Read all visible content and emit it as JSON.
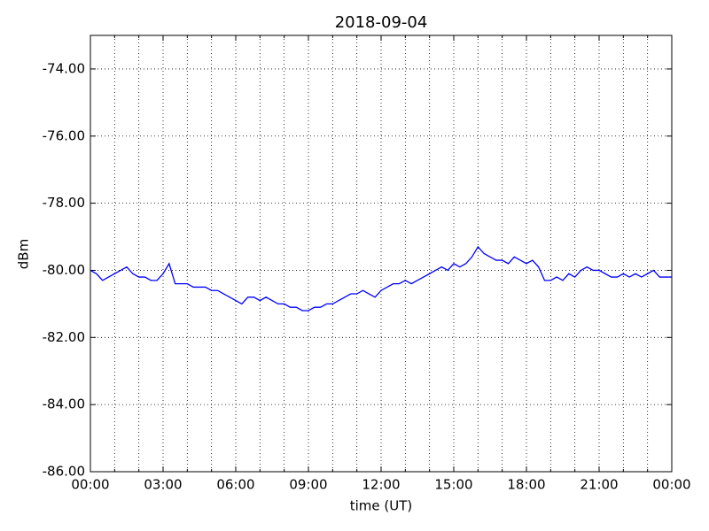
{
  "chart_data": {
    "type": "line",
    "title": "2018-09-04",
    "xlabel": "time (UT)",
    "ylabel": "dBm",
    "x": [
      0,
      0.25,
      0.5,
      0.75,
      1,
      1.25,
      1.5,
      1.75,
      2,
      2.25,
      2.5,
      2.75,
      3,
      3.25,
      3.5,
      3.75,
      4,
      4.25,
      4.5,
      4.75,
      5,
      5.25,
      5.5,
      5.75,
      6,
      6.25,
      6.5,
      6.75,
      7,
      7.25,
      7.5,
      7.75,
      8,
      8.25,
      8.5,
      8.75,
      9,
      9.25,
      9.5,
      9.75,
      10,
      10.25,
      10.5,
      10.75,
      11,
      11.25,
      11.5,
      11.75,
      12,
      12.25,
      12.5,
      12.75,
      13,
      13.25,
      13.5,
      13.75,
      14,
      14.25,
      14.5,
      14.75,
      15,
      15.25,
      15.5,
      15.75,
      16,
      16.25,
      16.5,
      16.75,
      17,
      17.25,
      17.5,
      17.75,
      18,
      18.25,
      18.5,
      18.75,
      19,
      19.25,
      19.5,
      19.75,
      20,
      20.25,
      20.5,
      20.75,
      21,
      21.25,
      21.5,
      21.75,
      22,
      22.25,
      22.5,
      22.75,
      23,
      23.25,
      23.5,
      23.75,
      24
    ],
    "series": [
      {
        "color": "#0000ff",
        "values": [
          -80.0,
          -80.1,
          -80.3,
          -80.2,
          -80.1,
          -80.0,
          -79.9,
          -80.1,
          -80.2,
          -80.2,
          -80.3,
          -80.3,
          -80.1,
          -79.8,
          -80.4,
          -80.4,
          -80.4,
          -80.5,
          -80.5,
          -80.5,
          -80.6,
          -80.6,
          -80.7,
          -80.8,
          -80.9,
          -81.0,
          -80.8,
          -80.8,
          -80.9,
          -80.8,
          -80.9,
          -81.0,
          -81.0,
          -81.1,
          -81.1,
          -81.2,
          -81.2,
          -81.1,
          -81.1,
          -81.0,
          -81.0,
          -80.9,
          -80.8,
          -80.7,
          -80.7,
          -80.6,
          -80.7,
          -80.8,
          -80.6,
          -80.5,
          -80.4,
          -80.4,
          -80.3,
          -80.4,
          -80.3,
          -80.2,
          -80.1,
          -80.0,
          -79.9,
          -80.0,
          -79.8,
          -79.9,
          -79.8,
          -79.6,
          -79.3,
          -79.5,
          -79.6,
          -79.7,
          -79.7,
          -79.8,
          -79.6,
          -79.7,
          -79.8,
          -79.7,
          -79.9,
          -80.3,
          -80.3,
          -80.2,
          -80.3,
          -80.1,
          -80.2,
          -80.0,
          -79.9,
          -80.0,
          -80.0,
          -80.1,
          -80.2,
          -80.2,
          -80.1,
          -80.2,
          -80.1,
          -80.2,
          -80.1,
          -80.0,
          -80.2,
          -80.2,
          -80.2
        ]
      }
    ],
    "xlim": [
      0,
      24
    ],
    "xticks": [
      {
        "value": 0,
        "label": "00:00"
      },
      {
        "value": 3,
        "label": "03:00"
      },
      {
        "value": 6,
        "label": "06:00"
      },
      {
        "value": 9,
        "label": "09:00"
      },
      {
        "value": 12,
        "label": "12:00"
      },
      {
        "value": 15,
        "label": "15:00"
      },
      {
        "value": 18,
        "label": "18:00"
      },
      {
        "value": 21,
        "label": "21:00"
      },
      {
        "value": 24,
        "label": "00:00"
      }
    ],
    "x_minor_ticks": [
      1,
      2,
      4,
      5,
      7,
      8,
      10,
      11,
      13,
      14,
      16,
      17,
      19,
      20,
      22,
      23
    ],
    "ylim": [
      -86,
      -73
    ],
    "yticks": [
      {
        "value": -86,
        "label": "-86.00"
      },
      {
        "value": -84,
        "label": "-84.00"
      },
      {
        "value": -82,
        "label": "-82.00"
      },
      {
        "value": -80,
        "label": "-80.00"
      },
      {
        "value": -78,
        "label": "-78.00"
      },
      {
        "value": -76,
        "label": "-76.00"
      },
      {
        "value": -74,
        "label": "-74.00"
      }
    ],
    "grid": true
  }
}
